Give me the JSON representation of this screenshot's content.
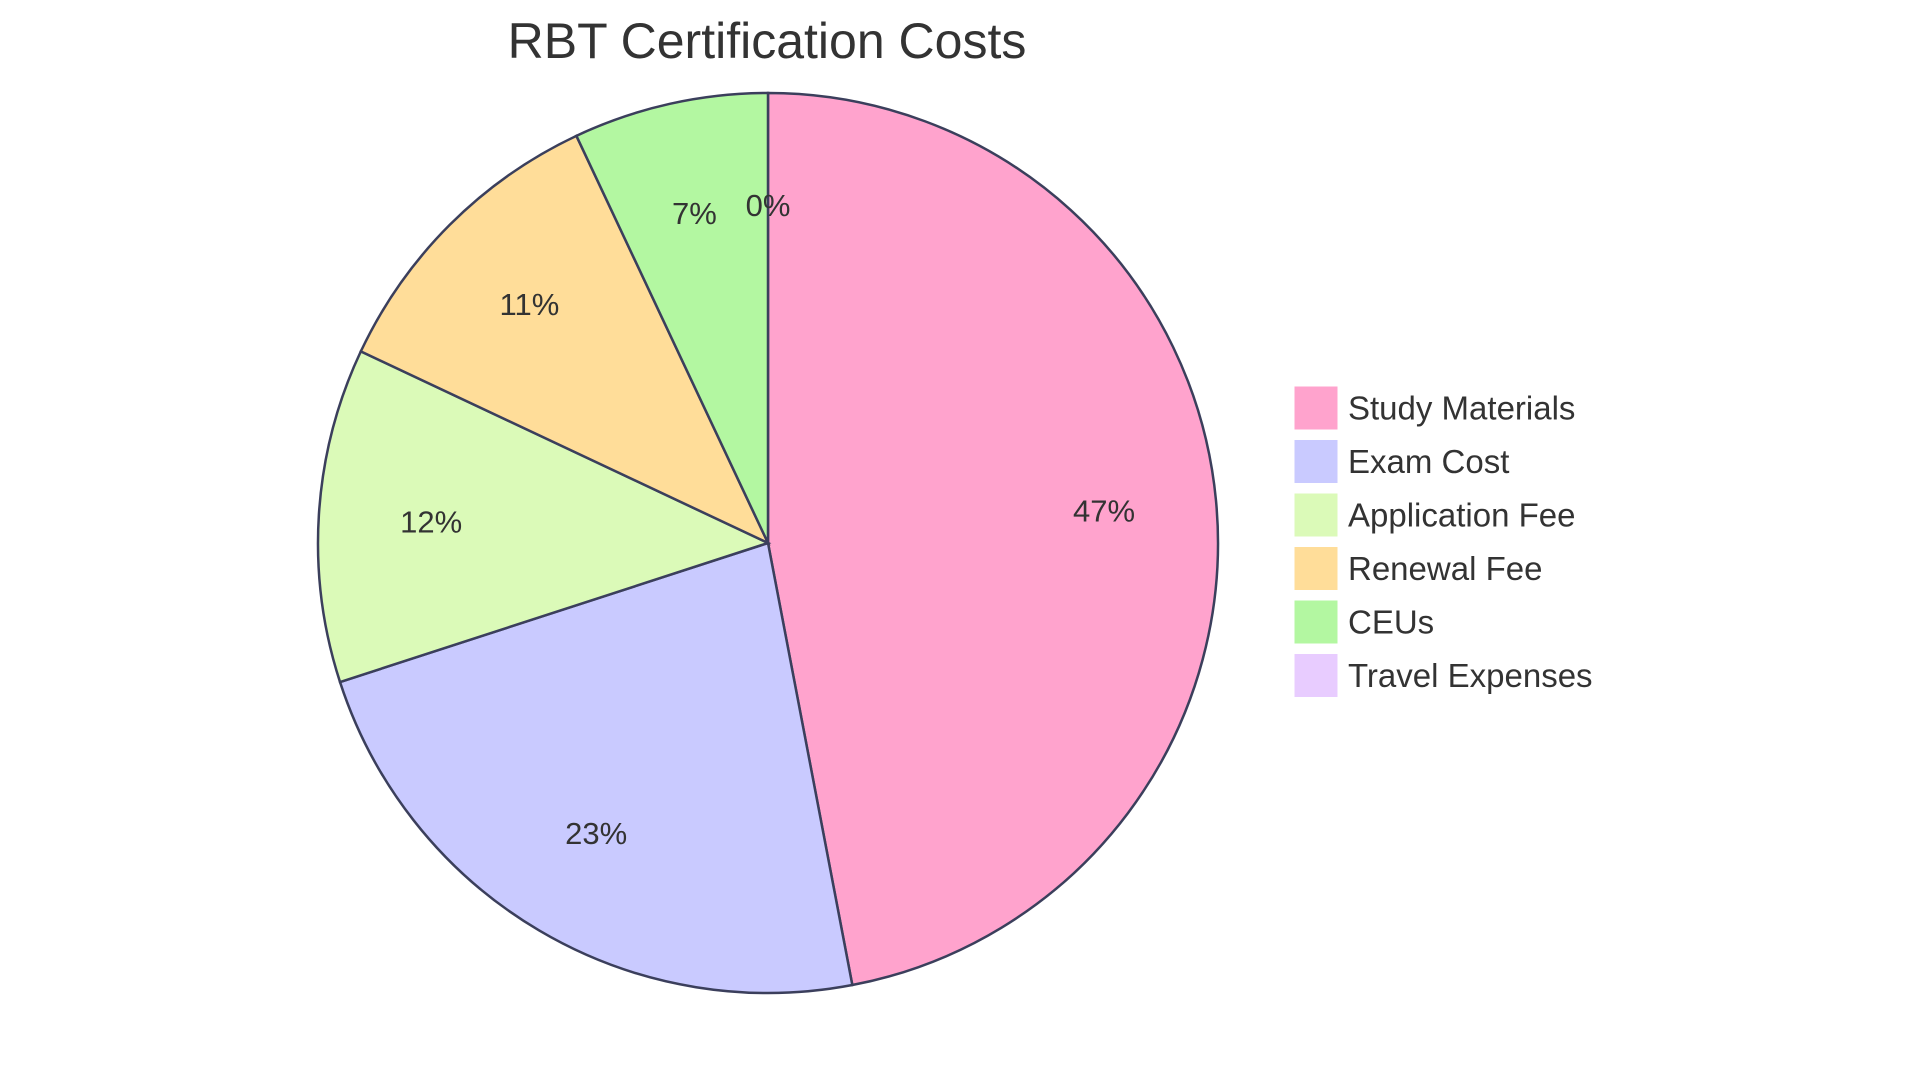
{
  "chart_data": {
    "type": "pie",
    "title": "RBT Certification Costs",
    "categories": [
      "Study Materials",
      "Exam Cost",
      "Application Fee",
      "Renewal Fee",
      "CEUs",
      "Travel Expenses"
    ],
    "values": [
      47,
      23,
      12,
      11,
      7,
      0
    ],
    "labels": [
      "47%",
      "23%",
      "12%",
      "11%",
      "7%",
      "0%"
    ],
    "colors": [
      "#ffa3cd",
      "#c9caff",
      "#dbfab8",
      "#ffdd99",
      "#b3f7a1",
      "#e8ccff"
    ],
    "legend_position": "right",
    "start": "top",
    "direction": "clockwise"
  }
}
